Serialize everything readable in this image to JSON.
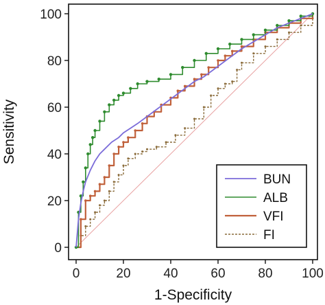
{
  "chart_data": {
    "type": "line",
    "xlabel": "1-Specificity",
    "ylabel": "Sensitivity",
    "xlim": [
      0,
      100
    ],
    "ylim": [
      0,
      100
    ],
    "xticks": [
      0,
      20,
      40,
      60,
      80,
      100
    ],
    "yticks": [
      0,
      20,
      40,
      60,
      80,
      100
    ],
    "grid": false,
    "legend_position": "bottom-right",
    "reference_line": {
      "x": [
        0,
        100
      ],
      "y": [
        0,
        100
      ],
      "color": "#e8a0a0"
    },
    "series": [
      {
        "name": "BUN",
        "color": "#7b6cd9",
        "style": "solid",
        "x": [
          0,
          1,
          2,
          3,
          4,
          6,
          8,
          10,
          12,
          15,
          18,
          20,
          23,
          26,
          30,
          34,
          38,
          42,
          46,
          50,
          54,
          58,
          62,
          66,
          70,
          75,
          80,
          85,
          90,
          95,
          100
        ],
        "y": [
          0,
          12,
          19,
          24,
          28,
          33,
          37,
          40,
          42,
          45,
          47,
          49,
          51,
          53,
          56,
          59,
          62,
          65,
          68,
          71,
          73,
          76,
          79,
          82,
          85,
          88,
          91,
          94,
          96,
          98,
          100
        ]
      },
      {
        "name": "ALB",
        "color": "#2e8b2e",
        "style": "dotted-markers",
        "x": [
          0,
          1,
          2,
          3,
          4,
          5,
          6,
          7,
          8,
          10,
          12,
          14,
          16,
          18,
          20,
          23,
          26,
          30,
          35,
          40,
          45,
          50,
          55,
          60,
          65,
          70,
          75,
          80,
          85,
          90,
          95,
          100
        ],
        "y": [
          0,
          15,
          22,
          28,
          34,
          40,
          44,
          47,
          50,
          54,
          58,
          61,
          63,
          65,
          66,
          68,
          70,
          71,
          72,
          74,
          77,
          80,
          83,
          85,
          87,
          89,
          91,
          93,
          95,
          97,
          99,
          100
        ]
      },
      {
        "name": "VFI",
        "color": "#c0603a",
        "style": "step-markers",
        "x": [
          0,
          2,
          4,
          6,
          8,
          10,
          12,
          14,
          16,
          18,
          20,
          22,
          25,
          28,
          30,
          33,
          36,
          40,
          43,
          46,
          50,
          53,
          56,
          60,
          63,
          66,
          70,
          75,
          80,
          85,
          90,
          95,
          100
        ],
        "y": [
          0,
          12,
          20,
          22,
          24,
          27,
          30,
          35,
          40,
          43,
          45,
          47,
          50,
          53,
          56,
          58,
          61,
          64,
          67,
          69,
          72,
          74,
          77,
          80,
          82,
          84,
          86,
          89,
          92,
          94,
          96,
          98,
          100
        ]
      },
      {
        "name": "FI",
        "color": "#8a6b3a",
        "style": "dashed-markers",
        "x": [
          0,
          2,
          4,
          6,
          8,
          10,
          12,
          14,
          16,
          18,
          20,
          22,
          25,
          28,
          30,
          34,
          38,
          42,
          46,
          50,
          54,
          57,
          60,
          63,
          66,
          68,
          70,
          75,
          80,
          85,
          90,
          95,
          100
        ],
        "y": [
          0,
          5,
          9,
          12,
          15,
          18,
          20,
          24,
          28,
          31,
          35,
          38,
          40,
          41,
          42,
          43,
          45,
          48,
          51,
          55,
          60,
          65,
          68,
          70,
          71,
          76,
          79,
          83,
          86,
          89,
          92,
          95,
          98
        ]
      }
    ]
  }
}
